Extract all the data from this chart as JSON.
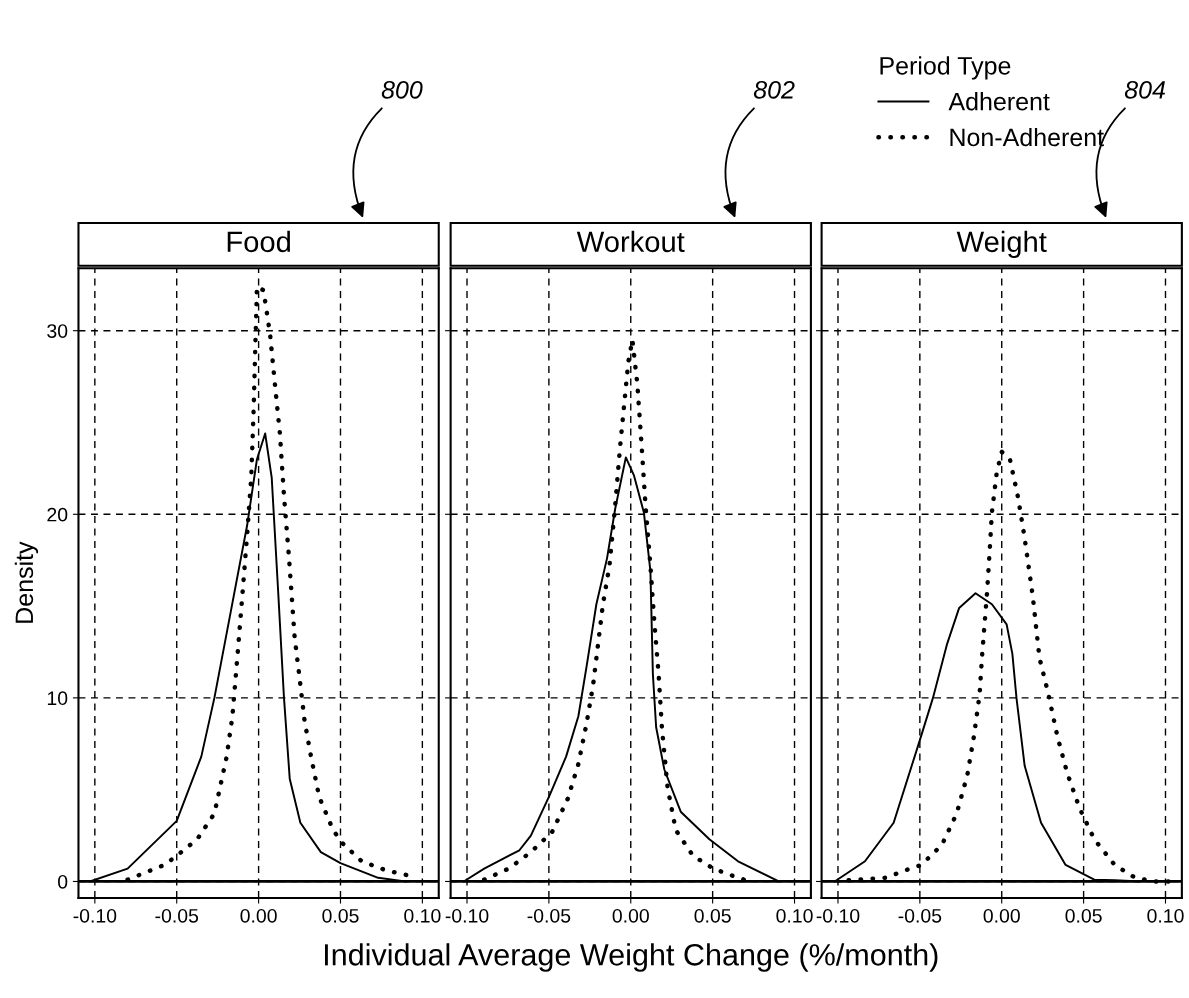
{
  "chart_data": [
    {
      "type": "line",
      "title": "Food",
      "ylabel": "Density",
      "annotations": [
        "800"
      ],
      "xlim": [
        -0.11,
        0.11
      ],
      "ylim": [
        -0.9,
        33.4
      ],
      "xticks": [
        {
          "value": -0.1,
          "label": "-0.10"
        },
        {
          "value": -0.05,
          "label": "-0.05"
        },
        {
          "value": 0,
          "label": "0.00"
        },
        {
          "value": 0.05,
          "label": "0.05"
        },
        {
          "value": 0.1,
          "label": "0.10"
        }
      ],
      "yticks": [
        0,
        10,
        20,
        30
      ],
      "grid": true,
      "marker": "none",
      "ref_lines": [
        {
          "axis": "y",
          "value": 0,
          "line_style": "solid",
          "color": "#000000"
        }
      ],
      "series": [
        {
          "color": "#000000",
          "line_style": "solid",
          "x": [
            -0.103,
            -0.08,
            -0.05,
            -0.035,
            -0.027,
            -0.017,
            -0.007,
            -0.001,
            0.004,
            0.008,
            0.012,
            0.0155,
            0.019,
            0.0255,
            0.038,
            0.05,
            0.073,
            0.09
          ],
          "values": [
            0,
            0.7,
            3.3,
            6.8,
            10,
            14.7,
            19.4,
            23,
            24.4,
            22,
            15.7,
            10,
            5.6,
            3.2,
            1.6,
            1.0,
            0.2,
            0
          ]
        },
        {
          "color": "#000000",
          "line_style": "dotted",
          "x": [
            -0.08,
            -0.0575,
            -0.05,
            -0.0375,
            -0.027,
            -0.0195,
            -0.016,
            -0.013,
            -0.01,
            -0.007,
            -0.0045,
            -0.003,
            -0.002,
            -0.001,
            0.003,
            0.007,
            0.0105,
            0.013,
            0.0155,
            0.0185,
            0.022,
            0.025,
            0.028,
            0.032,
            0.037,
            0.0455,
            0.051,
            0.063,
            0.078,
            0.093
          ],
          "values": [
            0.1,
            0.9,
            1.4,
            2.3,
            3.7,
            6.8,
            9.0,
            12.2,
            15.5,
            18.9,
            22,
            25.8,
            29.2,
            32.4,
            32.2,
            29.8,
            26.6,
            24.4,
            21,
            17.7,
            13.3,
            11.1,
            8.8,
            6.8,
            4.6,
            2.8,
            2.1,
            1.1,
            0.6,
            0.3
          ]
        }
      ]
    },
    {
      "type": "line",
      "title": "Workout",
      "xlabel": "Individual Average Weight Change (%/month)",
      "annotations": [
        "802"
      ],
      "xlim": [
        -0.11,
        0.11
      ],
      "ylim": [
        -0.9,
        33.4
      ],
      "xticks": [
        {
          "value": -0.1,
          "label": "-0.10"
        },
        {
          "value": -0.05,
          "label": "-0.05"
        },
        {
          "value": 0,
          "label": "0.00"
        },
        {
          "value": 0.05,
          "label": "0.05"
        },
        {
          "value": 0.1,
          "label": "0.10"
        }
      ],
      "yticks": [
        0,
        10,
        20,
        30
      ],
      "tick_labels": "x",
      "grid": true,
      "marker": "none",
      "ref_lines": [
        {
          "axis": "y",
          "value": 0,
          "line_style": "solid",
          "color": "#000000"
        }
      ],
      "series": [
        {
          "color": "#000000",
          "line_style": "solid",
          "x": [
            -0.102,
            -0.0895,
            -0.068,
            -0.061,
            -0.0495,
            -0.0395,
            -0.032,
            -0.027,
            -0.021,
            -0.0145,
            -0.0095,
            -0.003,
            0.002,
            0.008,
            0.012,
            0.0135,
            0.0155,
            0.0205,
            0.0305,
            0.048,
            0.0655,
            0.0905
          ],
          "values": [
            0,
            0.7,
            1.7,
            2.5,
            4.7,
            6.8,
            9.0,
            11.7,
            15.1,
            17.6,
            20.3,
            23.1,
            22.1,
            20.1,
            16.9,
            11.3,
            8.4,
            6.1,
            3.8,
            2.3,
            1.1,
            0
          ]
        },
        {
          "color": "#000000",
          "line_style": "dotted",
          "x": [
            -0.0895,
            -0.0745,
            -0.061,
            -0.048,
            -0.0385,
            -0.032,
            -0.027,
            -0.023,
            -0.02,
            -0.017,
            -0.013,
            -0.0095,
            -0.0065,
            -0.004,
            -0.0015,
            0.001,
            0.004,
            0.0065,
            0.009,
            0.012,
            0.0145,
            0.017,
            0.019,
            0.0225,
            0.0275,
            0.038,
            0.0505,
            0.0655,
            0.073
          ],
          "values": [
            0.1,
            0.7,
            1.6,
            2.7,
            4.5,
            6.4,
            8.6,
            10.7,
            12.9,
            15.1,
            17.2,
            20.5,
            23.7,
            26,
            28.3,
            29.5,
            27.1,
            23.9,
            20.5,
            17.2,
            14,
            11.3,
            8.4,
            5.1,
            2.8,
            1.4,
            0.7,
            0.2,
            0
          ]
        }
      ]
    },
    {
      "type": "line",
      "title": "Weight",
      "legend_title": "Period Type",
      "legend": "top left",
      "annotations": [
        "804"
      ],
      "xlim": [
        -0.11,
        0.11
      ],
      "ylim": [
        -0.9,
        33.4
      ],
      "xticks": [
        {
          "value": -0.1,
          "label": "-0.10"
        },
        {
          "value": -0.05,
          "label": "-0.05"
        },
        {
          "value": 0,
          "label": "0.00"
        },
        {
          "value": 0.05,
          "label": "0.05"
        },
        {
          "value": 0.1,
          "label": "0.10"
        }
      ],
      "yticks": [
        0,
        10,
        20,
        30
      ],
      "tick_labels": "x",
      "grid": true,
      "marker": "none",
      "ref_lines": [
        {
          "axis": "y",
          "value": 0,
          "line_style": "solid",
          "color": "#000000"
        }
      ],
      "series": [
        {
          "name": "Adherent",
          "color": "#000000",
          "line_style": "solid",
          "x": [
            -0.102,
            -0.0835,
            -0.066,
            -0.05,
            -0.042,
            -0.0335,
            -0.026,
            -0.016,
            -0.006,
            0.003,
            0.0065,
            0.009,
            0.014,
            0.024,
            0.039,
            0.0565,
            0.069,
            0.084
          ],
          "values": [
            0,
            1.1,
            3.2,
            7.7,
            10,
            12.9,
            14.9,
            15.7,
            15.1,
            14,
            12.4,
            10,
            6.3,
            3.2,
            0.9,
            0.1,
            0.07,
            0
          ]
        },
        {
          "name": "Non-Adherent",
          "color": "#000000",
          "line_style": "dotted",
          "x": [
            -0.0935,
            -0.071,
            -0.056,
            -0.049,
            -0.0365,
            -0.0275,
            -0.021,
            -0.017,
            -0.0135,
            -0.012,
            -0.009,
            -0.0075,
            -0.006,
            -0.003,
            0.0,
            0.005,
            0.01,
            0.014,
            0.019,
            0.023,
            0.0285,
            0.034,
            0.04,
            0.0475,
            0.0565,
            0.069,
            0.0815,
            0.094,
            0.104
          ],
          "values": [
            0.07,
            0.2,
            0.7,
            0.9,
            2,
            3.7,
            5.8,
            7.9,
            10.2,
            12.3,
            15.7,
            17.8,
            20.1,
            22.3,
            23.4,
            23,
            20.9,
            18.7,
            15.5,
            12.2,
            10.2,
            7.9,
            5.9,
            4.0,
            2.3,
            0.9,
            0.2,
            0,
            0
          ]
        }
      ]
    }
  ]
}
